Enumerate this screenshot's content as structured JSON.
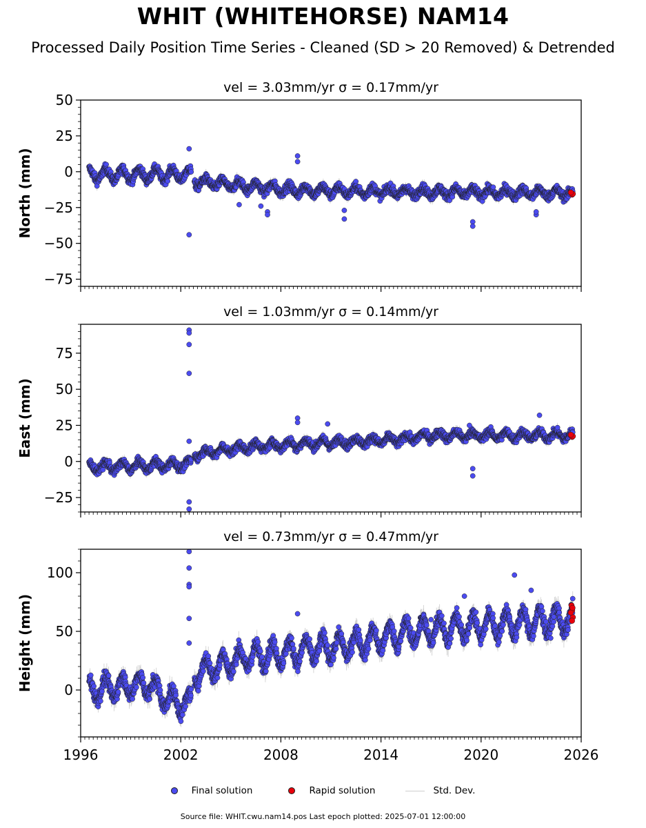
{
  "title": "WHIT (WHITEHORSE) NAM14",
  "subtitle": "Processed Daily Position Time Series - Cleaned (SD > 20 Removed) & Detrended",
  "legend": {
    "final_label": "Final solution",
    "rapid_label": "Rapid solution",
    "std_label": "Std. Dev."
  },
  "footer": "Source file: WHIT.cwu.nam14.pos  Last epoch plotted: 2025-07-01 12:00:00",
  "colors": {
    "final": "#4b4bf0",
    "rapid": "#e8000b",
    "std": "#9a9a9a",
    "edge": "#202020"
  },
  "chart_data": [
    {
      "type": "scatter",
      "title": "vel = 3.03mm/yr   σ = 0.17mm/yr",
      "ylabel": "North (mm)",
      "xlim": [
        1996,
        2026
      ],
      "ylim": [
        -80,
        50
      ],
      "xticks": [
        "1996",
        "2002",
        "2008",
        "2014",
        "2020",
        "2026"
      ],
      "yticks": [
        "50",
        "25",
        "0",
        "−25",
        "−50",
        "−75"
      ],
      "show_xticklabels": false,
      "trend": [
        [
          1996.5,
          -2
        ],
        [
          2002.7,
          -2
        ],
        [
          2002.8,
          -7
        ],
        [
          2009.0,
          -13
        ],
        [
          2015.0,
          -14
        ],
        [
          2025.5,
          -15
        ]
      ],
      "seasonal_amp": [
        [
          1996.5,
          4
        ],
        [
          2002.7,
          4
        ],
        [
          2002.8,
          3
        ],
        [
          2025.5,
          2.5
        ]
      ],
      "noise": 2.2,
      "std_dev": 2.5,
      "outliers": [
        [
          2002.5,
          -44
        ],
        [
          2002.5,
          16
        ],
        [
          2009.0,
          11
        ],
        [
          2009.0,
          7
        ],
        [
          2011.8,
          -27
        ],
        [
          2011.8,
          -33
        ],
        [
          2019.5,
          -35
        ],
        [
          2019.5,
          -38
        ],
        [
          2007.2,
          -28
        ],
        [
          2007.2,
          -30
        ],
        [
          2006.8,
          -24
        ],
        [
          2023.3,
          -30
        ],
        [
          2023.3,
          -28
        ],
        [
          2005.5,
          -23
        ]
      ],
      "rapid": [
        [
          2025.42,
          -15
        ],
        [
          2025.46,
          -16
        ],
        [
          2025.5,
          -15.5
        ],
        [
          2025.38,
          -14.5
        ]
      ]
    },
    {
      "type": "scatter",
      "title": "vel = 1.03mm/yr   σ = 0.14mm/yr",
      "ylabel": "East (mm)",
      "xlim": [
        1996,
        2026
      ],
      "ylim": [
        -35,
        95
      ],
      "xticks": [
        "1996",
        "2002",
        "2008",
        "2014",
        "2020",
        "2026"
      ],
      "yticks": [
        "75",
        "50",
        "25",
        "0",
        "−25"
      ],
      "show_xticklabels": false,
      "trend": [
        [
          1996.5,
          -4
        ],
        [
          2002.7,
          -2
        ],
        [
          2002.8,
          5
        ],
        [
          2006.0,
          10
        ],
        [
          2009.0,
          12
        ],
        [
          2015.0,
          15
        ],
        [
          2017.0,
          18
        ],
        [
          2025.5,
          18
        ]
      ],
      "seasonal_amp": [
        [
          1996.5,
          3
        ],
        [
          2002.7,
          3
        ],
        [
          2002.8,
          2.5
        ],
        [
          2025.5,
          2.5
        ]
      ],
      "noise": 2.0,
      "std_dev": 2.5,
      "outliers": [
        [
          2002.5,
          91
        ],
        [
          2002.5,
          89
        ],
        [
          2002.5,
          81
        ],
        [
          2002.5,
          61
        ],
        [
          2002.5,
          14
        ],
        [
          2002.5,
          -28
        ],
        [
          2002.5,
          -33
        ],
        [
          2019.5,
          -5
        ],
        [
          2019.5,
          -10
        ],
        [
          2009.0,
          30
        ],
        [
          2009.0,
          27
        ],
        [
          2010.8,
          26
        ],
        [
          2019.3,
          25
        ],
        [
          2023.5,
          32
        ]
      ],
      "rapid": [
        [
          2025.42,
          18
        ],
        [
          2025.46,
          17
        ],
        [
          2025.5,
          17.5
        ],
        [
          2025.38,
          18.5
        ]
      ]
    },
    {
      "type": "scatter",
      "title": "vel = 0.73mm/yr   σ = 0.47mm/yr",
      "ylabel": "Height (mm)",
      "xlim": [
        1996,
        2026
      ],
      "ylim": [
        -40,
        120
      ],
      "xticks": [
        "1996",
        "2002",
        "2008",
        "2014",
        "2020",
        "2026"
      ],
      "yticks": [
        "100",
        "50",
        "0"
      ],
      "show_xticklabels": true,
      "trend": [
        [
          1996.5,
          0
        ],
        [
          2000.0,
          5
        ],
        [
          2001.5,
          -10
        ],
        [
          2002.6,
          -12
        ],
        [
          2002.9,
          15
        ],
        [
          2006.0,
          28
        ],
        [
          2009.0,
          33
        ],
        [
          2012.0,
          38
        ],
        [
          2016.0,
          50
        ],
        [
          2020.0,
          55
        ],
        [
          2025.5,
          60
        ]
      ],
      "seasonal_amp": [
        [
          1996.5,
          9
        ],
        [
          2002.7,
          9
        ],
        [
          2002.8,
          9
        ],
        [
          2025.5,
          11
        ]
      ],
      "noise": 4.5,
      "std_dev": 6,
      "outliers": [
        [
          2002.5,
          118
        ],
        [
          2002.5,
          104
        ],
        [
          2002.5,
          90
        ],
        [
          2002.5,
          88
        ],
        [
          2002.5,
          61
        ],
        [
          2002.5,
          40
        ],
        [
          2009.0,
          65
        ],
        [
          2022.0,
          98
        ],
        [
          2019.0,
          80
        ],
        [
          2017.0,
          60
        ],
        [
          2023.0,
          85
        ]
      ],
      "rapid": [
        [
          2025.42,
          72
        ],
        [
          2025.46,
          68
        ],
        [
          2025.5,
          62
        ],
        [
          2025.38,
          66
        ],
        [
          2025.45,
          59
        ],
        [
          2025.48,
          70
        ]
      ]
    }
  ]
}
